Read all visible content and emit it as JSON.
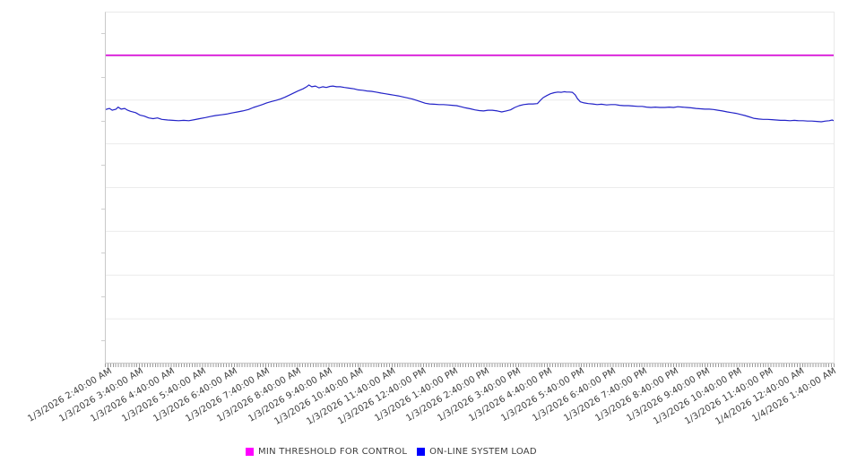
{
  "chart_data": {
    "type": "line",
    "title": "",
    "grid": true,
    "legend_position": "bottom-center",
    "x_labels": [
      "1/3/2026 2:40:00 AM",
      "1/3/2026 3:40:00 AM",
      "1/3/2026 4:40:00 AM",
      "1/3/2026 5:40:00 AM",
      "1/3/2026 6:40:00 AM",
      "1/3/2026 7:40:00 AM",
      "1/3/2026 8:40:00 AM",
      "1/3/2026 9:40:00 AM",
      "1/3/2026 10:40:00 AM",
      "1/3/2026 11:40:00 AM",
      "1/3/2026 12:40:00 PM",
      "1/3/2026 1:40:00 PM",
      "1/3/2026 2:40:00 PM",
      "1/3/2026 3:40:00 PM",
      "1/3/2026 4:40:00 PM",
      "1/3/2026 5:40:00 PM",
      "1/3/2026 6:40:00 PM",
      "1/3/2026 7:40:00 PM",
      "1/3/2026 8:40:00 PM",
      "1/3/2026 9:40:00 PM",
      "1/3/2026 10:40:00 PM",
      "1/3/2026 11:40:00 PM",
      "1/4/2026 12:40:00 AM",
      "1/4/2026 1:40:00 AM"
    ],
    "x_minor_ticks_per_label_interval": 12,
    "y_axis": {
      "tick_labels_visible": false,
      "major_divisions": 8,
      "minor_ticks_between_majors": 1,
      "value_scale": "percent_of_plot_height"
    },
    "ylim": [
      0,
      100
    ],
    "series": [
      {
        "name": "MIN THRESHOLD FOR CONTROL",
        "type": "constant-threshold",
        "legend_color": "#ff00ff",
        "line_color": "#d900d9",
        "value": 87.8
      },
      {
        "name": "ON-LINE SYSTEM LOAD",
        "type": "line",
        "legend_color": "#0000ff",
        "line_color": "#2323c8",
        "points": [
          [
            0.0,
            72.3
          ],
          [
            0.005,
            72.6
          ],
          [
            0.009,
            72.1
          ],
          [
            0.014,
            72.4
          ],
          [
            0.017,
            73.0
          ],
          [
            0.021,
            72.4
          ],
          [
            0.026,
            72.6
          ],
          [
            0.03,
            72.1
          ],
          [
            0.034,
            71.8
          ],
          [
            0.041,
            71.4
          ],
          [
            0.047,
            70.7
          ],
          [
            0.053,
            70.4
          ],
          [
            0.059,
            69.9
          ],
          [
            0.065,
            69.7
          ],
          [
            0.071,
            69.9
          ],
          [
            0.077,
            69.5
          ],
          [
            0.085,
            69.3
          ],
          [
            0.092,
            69.2
          ],
          [
            0.1,
            69.1
          ],
          [
            0.107,
            69.2
          ],
          [
            0.114,
            69.1
          ],
          [
            0.122,
            69.4
          ],
          [
            0.129,
            69.7
          ],
          [
            0.137,
            70.0
          ],
          [
            0.144,
            70.3
          ],
          [
            0.151,
            70.6
          ],
          [
            0.159,
            70.8
          ],
          [
            0.166,
            71.0
          ],
          [
            0.173,
            71.3
          ],
          [
            0.181,
            71.6
          ],
          [
            0.188,
            71.9
          ],
          [
            0.196,
            72.3
          ],
          [
            0.203,
            72.9
          ],
          [
            0.209,
            73.3
          ],
          [
            0.215,
            73.7
          ],
          [
            0.221,
            74.2
          ],
          [
            0.228,
            74.6
          ],
          [
            0.234,
            74.9
          ],
          [
            0.24,
            75.3
          ],
          [
            0.246,
            75.8
          ],
          [
            0.252,
            76.4
          ],
          [
            0.258,
            77.0
          ],
          [
            0.264,
            77.6
          ],
          [
            0.271,
            78.2
          ],
          [
            0.276,
            78.8
          ],
          [
            0.279,
            79.3
          ],
          [
            0.283,
            78.8
          ],
          [
            0.288,
            79.0
          ],
          [
            0.293,
            78.5
          ],
          [
            0.298,
            78.8
          ],
          [
            0.303,
            78.6
          ],
          [
            0.308,
            78.9
          ],
          [
            0.312,
            79.0
          ],
          [
            0.317,
            78.8
          ],
          [
            0.322,
            78.8
          ],
          [
            0.328,
            78.6
          ],
          [
            0.335,
            78.4
          ],
          [
            0.341,
            78.2
          ],
          [
            0.347,
            77.9
          ],
          [
            0.353,
            77.8
          ],
          [
            0.359,
            77.6
          ],
          [
            0.365,
            77.5
          ],
          [
            0.371,
            77.3
          ],
          [
            0.378,
            77.0
          ],
          [
            0.384,
            76.8
          ],
          [
            0.39,
            76.6
          ],
          [
            0.396,
            76.4
          ],
          [
            0.402,
            76.2
          ],
          [
            0.408,
            75.9
          ],
          [
            0.415,
            75.6
          ],
          [
            0.421,
            75.3
          ],
          [
            0.427,
            74.9
          ],
          [
            0.433,
            74.5
          ],
          [
            0.439,
            74.1
          ],
          [
            0.445,
            73.9
          ],
          [
            0.451,
            73.8
          ],
          [
            0.458,
            73.7
          ],
          [
            0.464,
            73.7
          ],
          [
            0.47,
            73.6
          ],
          [
            0.476,
            73.5
          ],
          [
            0.482,
            73.4
          ],
          [
            0.488,
            73.1
          ],
          [
            0.494,
            72.8
          ],
          [
            0.501,
            72.5
          ],
          [
            0.507,
            72.2
          ],
          [
            0.513,
            72.0
          ],
          [
            0.519,
            71.9
          ],
          [
            0.525,
            72.1
          ],
          [
            0.531,
            72.1
          ],
          [
            0.538,
            71.9
          ],
          [
            0.544,
            71.6
          ],
          [
            0.55,
            71.9
          ],
          [
            0.556,
            72.2
          ],
          [
            0.562,
            72.9
          ],
          [
            0.568,
            73.4
          ],
          [
            0.574,
            73.7
          ],
          [
            0.581,
            73.9
          ],
          [
            0.587,
            73.9
          ],
          [
            0.593,
            74.0
          ],
          [
            0.597,
            74.9
          ],
          [
            0.601,
            75.7
          ],
          [
            0.606,
            76.3
          ],
          [
            0.611,
            76.8
          ],
          [
            0.616,
            77.1
          ],
          [
            0.621,
            77.3
          ],
          [
            0.626,
            77.2
          ],
          [
            0.63,
            77.4
          ],
          [
            0.633,
            77.3
          ],
          [
            0.637,
            77.3
          ],
          [
            0.641,
            77.2
          ],
          [
            0.645,
            76.5
          ],
          [
            0.648,
            75.4
          ],
          [
            0.652,
            74.5
          ],
          [
            0.657,
            74.2
          ],
          [
            0.663,
            74.0
          ],
          [
            0.669,
            73.9
          ],
          [
            0.675,
            73.7
          ],
          [
            0.681,
            73.8
          ],
          [
            0.688,
            73.6
          ],
          [
            0.694,
            73.7
          ],
          [
            0.7,
            73.7
          ],
          [
            0.706,
            73.5
          ],
          [
            0.712,
            73.4
          ],
          [
            0.718,
            73.4
          ],
          [
            0.724,
            73.3
          ],
          [
            0.731,
            73.2
          ],
          [
            0.737,
            73.2
          ],
          [
            0.743,
            73.0
          ],
          [
            0.749,
            72.9
          ],
          [
            0.755,
            73.0
          ],
          [
            0.761,
            72.9
          ],
          [
            0.768,
            72.9
          ],
          [
            0.774,
            73.0
          ],
          [
            0.78,
            72.9
          ],
          [
            0.786,
            73.1
          ],
          [
            0.792,
            73.0
          ],
          [
            0.798,
            72.9
          ],
          [
            0.804,
            72.8
          ],
          [
            0.811,
            72.6
          ],
          [
            0.817,
            72.5
          ],
          [
            0.823,
            72.4
          ],
          [
            0.829,
            72.4
          ],
          [
            0.835,
            72.3
          ],
          [
            0.841,
            72.1
          ],
          [
            0.847,
            71.9
          ],
          [
            0.854,
            71.6
          ],
          [
            0.86,
            71.4
          ],
          [
            0.866,
            71.2
          ],
          [
            0.872,
            70.9
          ],
          [
            0.878,
            70.6
          ],
          [
            0.884,
            70.2
          ],
          [
            0.89,
            69.8
          ],
          [
            0.897,
            69.6
          ],
          [
            0.903,
            69.5
          ],
          [
            0.909,
            69.5
          ],
          [
            0.915,
            69.4
          ],
          [
            0.921,
            69.3
          ],
          [
            0.927,
            69.2
          ],
          [
            0.933,
            69.2
          ],
          [
            0.94,
            69.1
          ],
          [
            0.946,
            69.2
          ],
          [
            0.952,
            69.1
          ],
          [
            0.958,
            69.1
          ],
          [
            0.964,
            69.0
          ],
          [
            0.97,
            69.0
          ],
          [
            0.977,
            68.9
          ],
          [
            0.983,
            68.8
          ],
          [
            0.989,
            69.0
          ],
          [
            0.994,
            69.1
          ],
          [
            0.998,
            69.3
          ],
          [
            1.0,
            69.1
          ]
        ]
      }
    ],
    "style_colors": {
      "gridline": "#ececec",
      "axis_line": "#c9c9c9",
      "secondary_border": "#e9e9e9",
      "minor_tick": "#9a9a9a",
      "label_text": "#3d3d3d",
      "background": "#ffffff"
    }
  }
}
